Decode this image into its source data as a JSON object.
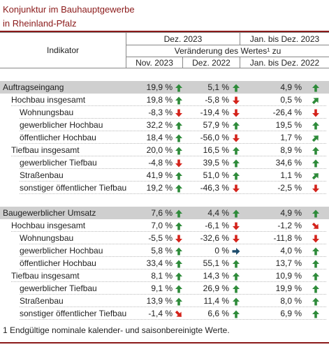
{
  "title": {
    "line1": "Konjunktur im Bauhauptgewerbe",
    "line2": "in Rheinland-Pfalz"
  },
  "header": {
    "indikator": "Indikator",
    "dez2023": "Dez. 2023",
    "janbis2023": "Jan. bis Dez. 2023",
    "veraenderung": "Veränderung des Wertes¹ zu",
    "nov2023": "Nov. 2023",
    "dez2022": "Dez. 2022",
    "janbis2022": "Jan. bis Dez. 2022"
  },
  "colors": {
    "up": "#2e8b3a",
    "down": "#d4231b",
    "flat": "#1f4e6e",
    "accent": "#8b1a1a"
  },
  "sections": [
    {
      "rows": [
        {
          "label": "Auftragseingang",
          "indent": 0,
          "section": true,
          "v": [
            "19,9 %",
            "5,1 %",
            "4,9 %"
          ],
          "icons": [
            "arrow-up-icon",
            "arrow-up-icon",
            "arrow-up-icon"
          ]
        },
        {
          "label": "Hochbau insgesamt",
          "indent": 1,
          "v": [
            "19,8 %",
            "-5,8 %",
            "0,5 %"
          ],
          "icons": [
            "arrow-up-icon",
            "arrow-down-icon",
            "arrow-up-right-icon"
          ]
        },
        {
          "label": "Wohnungsbau",
          "indent": 2,
          "v": [
            "-8,3 %",
            "-19,4 %",
            "-26,4 %"
          ],
          "icons": [
            "arrow-down-icon",
            "arrow-down-icon",
            "arrow-down-icon"
          ]
        },
        {
          "label": "gewerblicher Hochbau",
          "indent": 2,
          "v": [
            "32,2 %",
            "57,9 %",
            "19,5 %"
          ],
          "icons": [
            "arrow-up-icon",
            "arrow-up-icon",
            "arrow-up-icon"
          ]
        },
        {
          "label": "öffentlicher Hochbau",
          "indent": 2,
          "v": [
            "18,4 %",
            "-56,0 %",
            "1,7 %"
          ],
          "icons": [
            "arrow-up-icon",
            "arrow-down-icon",
            "arrow-up-right-icon"
          ]
        },
        {
          "label": "Tiefbau insgesamt",
          "indent": 1,
          "v": [
            "20,0 %",
            "16,5 %",
            "8,9 %"
          ],
          "icons": [
            "arrow-up-icon",
            "arrow-up-icon",
            "arrow-up-icon"
          ]
        },
        {
          "label": "gewerblicher Tiefbau",
          "indent": 2,
          "v": [
            "-4,8 %",
            "39,5 %",
            "34,6 %"
          ],
          "icons": [
            "arrow-down-icon",
            "arrow-up-icon",
            "arrow-up-icon"
          ]
        },
        {
          "label": "Straßenbau",
          "indent": 2,
          "v": [
            "41,9 %",
            "51,0 %",
            "1,1 %"
          ],
          "icons": [
            "arrow-up-icon",
            "arrow-up-icon",
            "arrow-up-right-icon"
          ]
        },
        {
          "label": "sonstiger öffentlicher Tiefbau",
          "indent": 2,
          "v": [
            "19,2 %",
            "-46,3 %",
            "-2,5 %"
          ],
          "icons": [
            "arrow-up-icon",
            "arrow-down-icon",
            "arrow-down-icon"
          ]
        }
      ]
    },
    {
      "rows": [
        {
          "label": "Baugewerblicher Umsatz",
          "indent": 0,
          "section": true,
          "v": [
            "7,6 %",
            "4,4 %",
            "4,9 %"
          ],
          "icons": [
            "arrow-up-icon",
            "arrow-up-icon",
            "arrow-up-icon"
          ]
        },
        {
          "label": "Hochbau insgesamt",
          "indent": 1,
          "v": [
            "7,0 %",
            "-6,1 %",
            "-1,2 %"
          ],
          "icons": [
            "arrow-up-icon",
            "arrow-down-icon",
            "arrow-down-right-icon"
          ]
        },
        {
          "label": "Wohnungsbau",
          "indent": 2,
          "v": [
            "-5,5 %",
            "-32,6 %",
            "-11,8 %"
          ],
          "icons": [
            "arrow-down-icon",
            "arrow-down-icon",
            "arrow-down-icon"
          ]
        },
        {
          "label": "gewerblicher Hochbau",
          "indent": 2,
          "v": [
            "5,8 %",
            "0 %",
            "4,0 %"
          ],
          "icons": [
            "arrow-up-icon",
            "arrow-right-icon",
            "arrow-up-icon"
          ]
        },
        {
          "label": "öffentlicher Hochbau",
          "indent": 2,
          "v": [
            "33,4 %",
            "55,1 %",
            "13,7 %"
          ],
          "icons": [
            "arrow-up-icon",
            "arrow-up-icon",
            "arrow-up-icon"
          ]
        },
        {
          "label": "Tiefbau insgesamt",
          "indent": 1,
          "v": [
            "8,1 %",
            "14,3 %",
            "10,9 %"
          ],
          "icons": [
            "arrow-up-icon",
            "arrow-up-icon",
            "arrow-up-icon"
          ]
        },
        {
          "label": "gewerblicher Tiefbau",
          "indent": 2,
          "v": [
            "9,1 %",
            "26,9 %",
            "19,9 %"
          ],
          "icons": [
            "arrow-up-icon",
            "arrow-up-icon",
            "arrow-up-icon"
          ]
        },
        {
          "label": "Straßenbau",
          "indent": 2,
          "v": [
            "13,9 %",
            "11,4 %",
            "8,0 %"
          ],
          "icons": [
            "arrow-up-icon",
            "arrow-up-icon",
            "arrow-up-icon"
          ]
        },
        {
          "label": "sonstiger öffentlicher Tiefbau",
          "indent": 2,
          "v": [
            "-1,4 %",
            "6,6 %",
            "6,9 %"
          ],
          "icons": [
            "arrow-down-right-icon",
            "arrow-up-icon",
            "arrow-up-icon"
          ]
        }
      ]
    }
  ],
  "footnote": "1 Endgültige nominale kalender- und saisonbereinigte Werte."
}
